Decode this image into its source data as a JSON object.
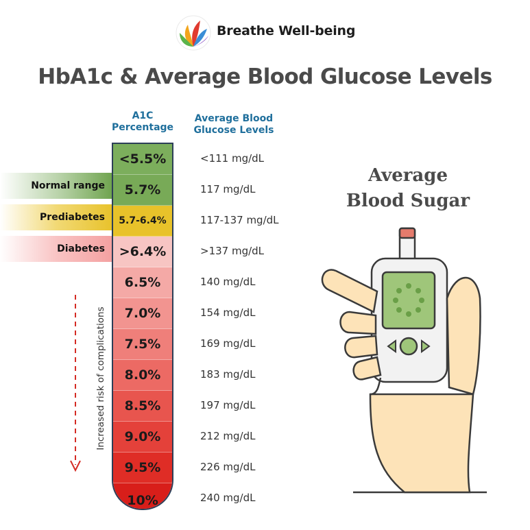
{
  "brand": {
    "name": "Breathe Well-being",
    "logo_icon": "petal-swirl-logo-icon"
  },
  "title": "HbA1c & Average Blood Glucose Levels",
  "columns": {
    "a1c_line1": "A1C",
    "a1c_line2": "Percentage",
    "avg_line1": "Average Blood",
    "avg_line2": "Glucose Levels"
  },
  "side_labels": {
    "normal": "Normal range",
    "prediabetes": "Prediabetes",
    "diabetes": "Diabetes"
  },
  "rows": [
    {
      "a1c": "<5.5%",
      "avg": "<111 mg/dL",
      "color": "#7cae5c"
    },
    {
      "a1c": "5.7%",
      "avg": "117 mg/dL",
      "color": "#78aa57"
    },
    {
      "a1c": "5.7-6.4%",
      "avg": "117-137 mg/dL",
      "color": "#e8c22a"
    },
    {
      "a1c": ">6.4%",
      "avg": ">137 mg/dL",
      "color": "#f7c5c3"
    },
    {
      "a1c": "6.5%",
      "avg": "140 mg/dL",
      "color": "#f4a9a6"
    },
    {
      "a1c": "7.0%",
      "avg": "154 mg/dL",
      "color": "#f29490"
    },
    {
      "a1c": "7.5%",
      "avg": "169 mg/dL",
      "color": "#ef7f7a"
    },
    {
      "a1c": "8.0%",
      "avg": "183 mg/dL",
      "color": "#ec6a64"
    },
    {
      "a1c": "8.5%",
      "avg": "197 mg/dL",
      "color": "#e8554e"
    },
    {
      "a1c": "9.0%",
      "avg": "212 mg/dL",
      "color": "#e4413a"
    },
    {
      "a1c": "9.5%",
      "avg": "226 mg/dL",
      "color": "#df2d26"
    },
    {
      "a1c": "10%",
      "avg": "240 mg/dL",
      "color": "#d81e1a"
    }
  ],
  "risk_text": "Increased risk of complications",
  "illustration": {
    "title_line1": "Average",
    "title_line2": "Blood Sugar",
    "icon": "glucose-meter-in-hand-icon"
  }
}
